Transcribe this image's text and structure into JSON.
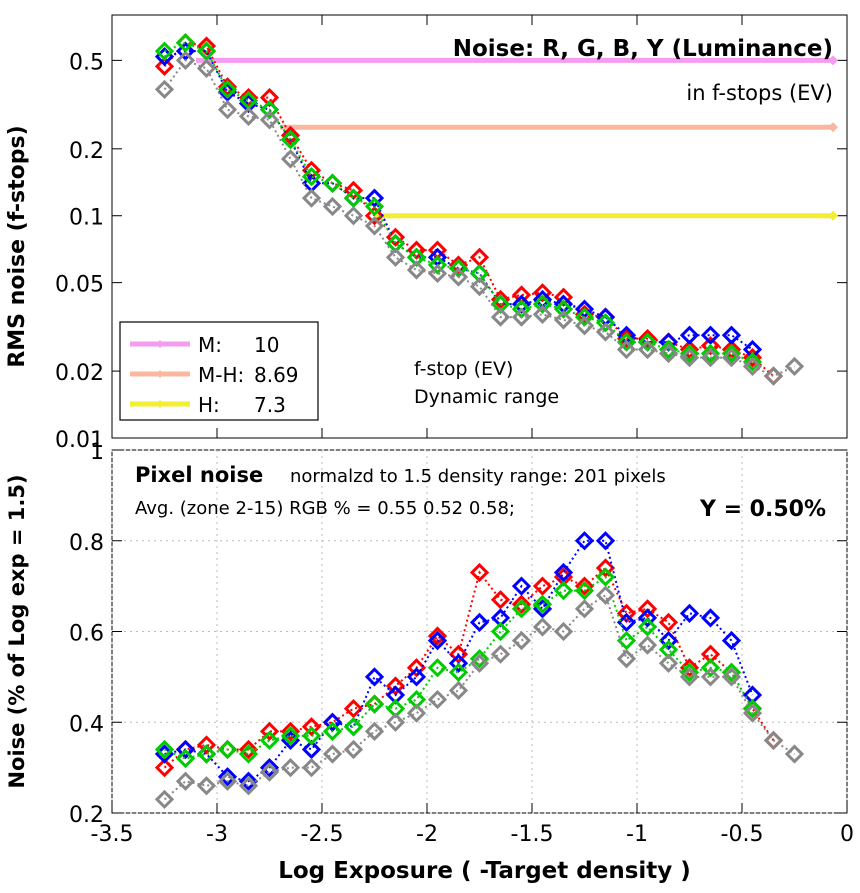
{
  "charts": [
    {
      "type": "scatter",
      "title": "Noise: R, G, B, Y (Luminance)",
      "subtitle": "in f-stops (EV)",
      "ylabel": "RMS noise (f-stops)",
      "yscale": "log",
      "ylim": [
        0.01,
        0.8
      ],
      "xlim": [
        -3.5,
        0
      ],
      "yticks": [
        {
          "v": 0.5,
          "t": "0.5"
        },
        {
          "v": 0.2,
          "t": "0.2"
        },
        {
          "v": 0.1,
          "t": "0.1"
        },
        {
          "v": 0.05,
          "t": "0.05"
        },
        {
          "v": 0.02,
          "t": "0.02"
        },
        {
          "v": 0.01,
          "t": "0.01"
        }
      ],
      "hlines": [
        {
          "y": 0.5,
          "x0": -3.1,
          "color": "#f59cf0"
        },
        {
          "y": 0.25,
          "x0": -2.7,
          "color": "#f9b7a0"
        },
        {
          "y": 0.1,
          "x0": -2.25,
          "color": "#f2ee34"
        }
      ],
      "legend": {
        "placement": "bottom-left",
        "entries": [
          {
            "label": "M:",
            "value": "10",
            "color": "#f59cf0"
          },
          {
            "label": "M-H:",
            "value": "8.69",
            "color": "#f9b7a0"
          },
          {
            "label": "H:",
            "value": "7.3",
            "color": "#f2ee34"
          }
        ]
      },
      "annotation": [
        "f-stop (EV)",
        "Dynamic range"
      ],
      "x": [
        -3.25,
        -3.15,
        -3.05,
        -2.95,
        -2.85,
        -2.75,
        -2.65,
        -2.55,
        -2.45,
        -2.35,
        -2.25,
        -2.15,
        -2.05,
        -1.95,
        -1.85,
        -1.75,
        -1.65,
        -1.55,
        -1.45,
        -1.35,
        -1.25,
        -1.15,
        -1.05,
        -0.95,
        -0.85,
        -0.75,
        -0.65,
        -0.55,
        -0.45,
        -0.35,
        -0.25
      ],
      "series": [
        {
          "color": "#ff0000",
          "values": [
            0.47,
            0.6,
            0.58,
            0.38,
            0.34,
            0.34,
            0.23,
            0.16,
            0.14,
            0.13,
            0.1,
            0.08,
            0.07,
            0.07,
            0.06,
            0.065,
            0.042,
            0.044,
            0.045,
            0.043,
            0.036,
            0.035,
            0.028,
            0.028,
            0.027,
            0.025,
            0.026,
            0.025,
            0.023,
            0.019,
            null
          ]
        },
        {
          "color": "#0000ff",
          "values": [
            0.52,
            0.55,
            0.55,
            0.36,
            0.32,
            0.3,
            0.22,
            0.14,
            0.14,
            0.12,
            0.12,
            0.075,
            0.065,
            0.065,
            0.058,
            0.055,
            0.04,
            0.04,
            0.042,
            0.04,
            0.038,
            0.035,
            0.029,
            0.027,
            0.027,
            0.029,
            0.029,
            0.029,
            0.025,
            null,
            null
          ]
        },
        {
          "color": "#00cc00",
          "values": [
            0.55,
            0.6,
            0.55,
            0.37,
            0.33,
            0.3,
            0.22,
            0.15,
            0.14,
            0.12,
            0.11,
            0.075,
            0.065,
            0.06,
            0.058,
            0.055,
            0.04,
            0.038,
            0.04,
            0.038,
            0.035,
            0.033,
            0.027,
            0.027,
            0.025,
            0.024,
            0.024,
            0.024,
            0.022,
            null,
            null
          ]
        },
        {
          "color": "#888888",
          "values": [
            0.37,
            0.5,
            0.46,
            0.3,
            0.28,
            0.27,
            0.18,
            0.12,
            0.11,
            0.1,
            0.09,
            0.065,
            0.057,
            0.055,
            0.053,
            0.048,
            0.035,
            0.035,
            0.036,
            0.034,
            0.032,
            0.03,
            0.025,
            0.025,
            0.024,
            0.023,
            0.023,
            0.023,
            0.021,
            0.019,
            0.021
          ]
        }
      ]
    },
    {
      "type": "scatter",
      "title": "Pixel noise",
      "title_suffix": "normalzd to 1.5 density range: 201 pixels",
      "avg_line": "Avg. (zone 2-15) RGB % = 0.55  0.52  0.58;",
      "y_summary": "Y = 0.50%",
      "ylabel": "Noise (% of Log exp = 1.5)",
      "xlabel": "Log Exposure ( -Target density )",
      "ylim": [
        0.2,
        1.0
      ],
      "xlim": [
        -3.5,
        0
      ],
      "yticks": [
        {
          "v": 1,
          "t": "1"
        },
        {
          "v": 0.8,
          "t": "0.8"
        },
        {
          "v": 0.6,
          "t": "0.6"
        },
        {
          "v": 0.4,
          "t": "0.4"
        },
        {
          "v": 0.2,
          "t": "0.2"
        }
      ],
      "xticks": [
        {
          "v": -3.5,
          "t": "-3.5"
        },
        {
          "v": -3,
          "t": "-3"
        },
        {
          "v": -2.5,
          "t": "-2.5"
        },
        {
          "v": -2,
          "t": "-2"
        },
        {
          "v": -1.5,
          "t": "-1.5"
        },
        {
          "v": -1,
          "t": "-1"
        },
        {
          "v": -0.5,
          "t": "-0.5"
        },
        {
          "v": 0,
          "t": "0"
        }
      ],
      "x": [
        -3.25,
        -3.15,
        -3.05,
        -2.95,
        -2.85,
        -2.75,
        -2.65,
        -2.55,
        -2.45,
        -2.35,
        -2.25,
        -2.15,
        -2.05,
        -1.95,
        -1.85,
        -1.75,
        -1.65,
        -1.55,
        -1.45,
        -1.35,
        -1.25,
        -1.15,
        -1.05,
        -0.95,
        -0.85,
        -0.75,
        -0.65,
        -0.55,
        -0.45,
        -0.35,
        -0.25
      ],
      "series": [
        {
          "color": "#ff0000",
          "values": [
            0.3,
            0.34,
            0.35,
            0.34,
            0.34,
            0.38,
            0.38,
            0.39,
            0.4,
            0.43,
            0.44,
            0.48,
            0.52,
            0.59,
            0.55,
            0.73,
            0.67,
            0.66,
            0.7,
            0.72,
            0.7,
            0.74,
            0.64,
            0.65,
            0.62,
            0.52,
            0.55,
            0.51,
            0.43,
            0.36,
            null
          ]
        },
        {
          "color": "#0000ff",
          "values": [
            0.33,
            0.34,
            0.33,
            0.28,
            0.27,
            0.3,
            0.36,
            0.34,
            0.4,
            0.39,
            0.5,
            0.46,
            0.5,
            0.58,
            0.53,
            0.62,
            0.63,
            0.7,
            0.65,
            0.73,
            0.8,
            0.8,
            0.62,
            0.63,
            0.58,
            0.64,
            0.63,
            0.58,
            0.46,
            null,
            null
          ]
        },
        {
          "color": "#00cc00",
          "values": [
            0.34,
            0.32,
            0.33,
            0.34,
            0.33,
            0.36,
            0.37,
            0.37,
            0.38,
            0.39,
            0.44,
            0.43,
            0.45,
            0.52,
            0.51,
            0.54,
            0.6,
            0.65,
            0.66,
            0.69,
            0.69,
            0.72,
            0.58,
            0.61,
            0.56,
            0.51,
            0.52,
            0.51,
            0.43,
            null,
            null
          ]
        },
        {
          "color": "#888888",
          "values": [
            0.23,
            0.27,
            0.26,
            0.27,
            0.26,
            0.29,
            0.3,
            0.3,
            0.33,
            0.34,
            0.38,
            0.4,
            0.42,
            0.45,
            0.47,
            0.53,
            0.55,
            0.58,
            0.61,
            0.6,
            0.65,
            0.68,
            0.54,
            0.57,
            0.53,
            0.5,
            0.5,
            0.5,
            0.42,
            0.36,
            0.33
          ]
        }
      ]
    }
  ]
}
